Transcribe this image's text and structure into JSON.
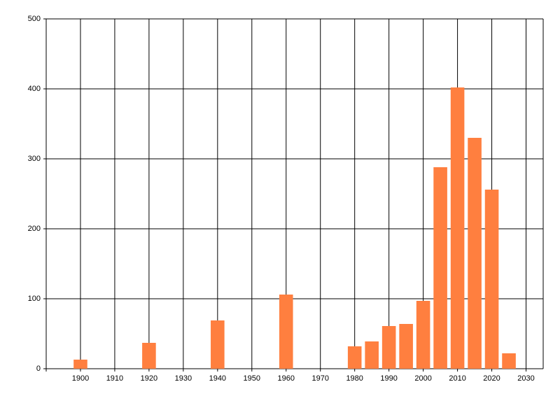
{
  "chart_data": {
    "type": "bar",
    "x": [
      1900,
      1920,
      1940,
      1960,
      1980,
      1985,
      1990,
      1995,
      2000,
      2005,
      2010,
      2015,
      2020,
      2025
    ],
    "values": [
      13,
      37,
      69,
      106,
      32,
      39,
      61,
      64,
      97,
      288,
      402,
      330,
      256,
      22
    ],
    "color": "#ff7f3f",
    "xlim": [
      1890,
      2035
    ],
    "xticks": [
      1900,
      1910,
      1920,
      1930,
      1940,
      1950,
      1960,
      1970,
      1980,
      1990,
      2000,
      2010,
      2020,
      2030
    ],
    "ylim": [
      0,
      500
    ],
    "yticks": [
      0,
      100,
      200,
      300,
      400,
      500
    ],
    "grid": true
  }
}
